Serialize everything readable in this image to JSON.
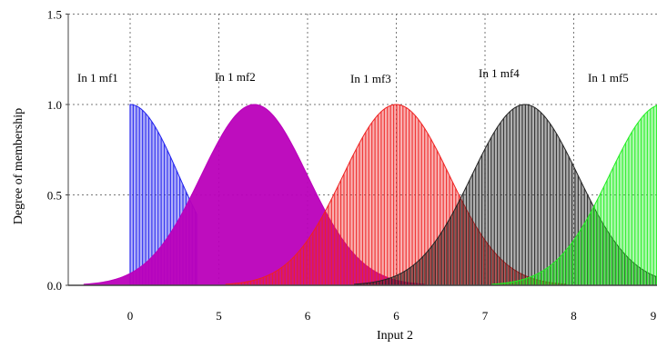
{
  "chart_data": {
    "type": "area",
    "title": "",
    "xlabel": "Input 2",
    "ylabel": "Degree of membership",
    "x_tick_labels": [
      "0",
      "5",
      "6",
      "6",
      "7",
      "8",
      "9"
    ],
    "x_tick_positions": [
      0,
      1,
      2,
      3,
      4,
      5,
      6
    ],
    "y_tick_labels": [
      "0.0",
      "0.5",
      "1.0",
      "1.5"
    ],
    "y_tick_values": [
      0,
      0.5,
      1.0,
      1.5
    ],
    "xlim": [
      -0.65,
      6
    ],
    "ylim": [
      -0.02,
      1.5
    ],
    "grid": true,
    "series": [
      {
        "name": "In 1 mf1",
        "color": "#2222ee",
        "center": 0,
        "sigma": 0.55,
        "x_min": 0,
        "x_max": 0.75
      },
      {
        "name": "In 1 mf2",
        "color": "#bb00bb",
        "center": 1.4,
        "sigma": 0.6
      },
      {
        "name": "In 1 mf3",
        "color": "#ee2222",
        "center": 3.0,
        "sigma": 0.6
      },
      {
        "name": "In 1 mf4",
        "color": "#222222",
        "center": 4.45,
        "sigma": 0.6
      },
      {
        "name": "In 1 mf5",
        "color": "#22ee22",
        "center": 6.0,
        "sigma": 0.6
      }
    ]
  }
}
